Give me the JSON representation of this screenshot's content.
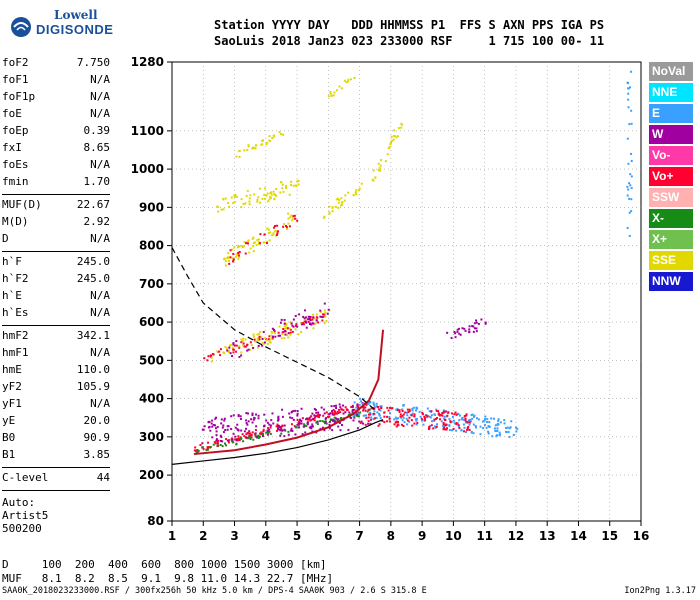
{
  "logo": {
    "line1": "Lowell",
    "line2": "DIGISONDE"
  },
  "header": {
    "line1": "Station YYYY DAY   DDD HHMMSS P1  FFS S AXN PPS IGA PS",
    "line2": "SaoLuis 2018 Jan23 023 233000 RSF     1 715 100 00- 11"
  },
  "params": [
    [
      {
        "k": "foF2",
        "v": "7.750"
      },
      {
        "k": "foF1",
        "v": "N/A"
      },
      {
        "k": "foF1p",
        "v": "N/A"
      },
      {
        "k": "foE",
        "v": "N/A"
      },
      {
        "k": "foEp",
        "v": "0.39"
      },
      {
        "k": "fxI",
        "v": "8.65"
      },
      {
        "k": "foEs",
        "v": "N/A"
      },
      {
        "k": "fmin",
        "v": "1.70"
      }
    ],
    [
      {
        "k": "MUF(D)",
        "v": "22.67"
      },
      {
        "k": "M(D)",
        "v": "2.92"
      },
      {
        "k": "D",
        "v": "N/A"
      }
    ],
    [
      {
        "k": "h`F",
        "v": "245.0"
      },
      {
        "k": "h`F2",
        "v": "245.0"
      },
      {
        "k": "h`E",
        "v": "N/A"
      },
      {
        "k": "h`Es",
        "v": "N/A"
      }
    ],
    [
      {
        "k": "hmF2",
        "v": "342.1"
      },
      {
        "k": "hmF1",
        "v": "N/A"
      },
      {
        "k": "hmE",
        "v": "110.0"
      },
      {
        "k": "yF2",
        "v": "105.9"
      },
      {
        "k": "yF1",
        "v": "N/A"
      },
      {
        "k": "yE",
        "v": "20.0"
      },
      {
        "k": "B0",
        "v": "90.9"
      },
      {
        "k": "B1",
        "v": "3.85"
      }
    ],
    [
      {
        "k": "C-level",
        "v": "44"
      }
    ]
  ],
  "auto": {
    "l1": "Auto:",
    "l2": "Artist5",
    "l3": "500200"
  },
  "dtable": {
    "row1": "D     100  200  400  600  800 1000 1500 3000 [km]",
    "row2": "MUF   8.1  8.2  8.5  9.1  9.8 11.0 14.3 22.7 [MHz]"
  },
  "footer": "SAA0K_2018023233000.RSF / 300fx256h 50 kHz 5.0 km / DPS-4 SAA0K 903 / 2.6 S 315.8 E",
  "footer_right": "Ion2Png 1.3.17",
  "legend": [
    {
      "label": "NoVal",
      "color": "#9a9a9a"
    },
    {
      "label": "NNE",
      "color": "#00e5ff"
    },
    {
      "label": "E",
      "color": "#3aa0ff"
    },
    {
      "label": "W",
      "color": "#a000a0"
    },
    {
      "label": "Vo-",
      "color": "#ff3aa8"
    },
    {
      "label": "Vo+",
      "color": "#ff0030"
    },
    {
      "label": "SSW",
      "color": "#ffb0b0"
    },
    {
      "label": "X-",
      "color": "#168c16"
    },
    {
      "label": "X+",
      "color": "#70c050"
    },
    {
      "label": "SSE",
      "color": "#e0d800"
    },
    {
      "label": "NNW",
      "color": "#1818d0"
    }
  ],
  "chart_data": {
    "type": "scatter",
    "title": "",
    "xlabel": "",
    "ylabel": "",
    "xlim": [
      1,
      16
    ],
    "ylim": [
      80,
      1280
    ],
    "x_ticks": [
      1,
      2,
      3,
      4,
      5,
      6,
      7,
      8,
      9,
      10,
      11,
      12,
      13,
      14,
      15,
      16
    ],
    "y_ticks": [
      80,
      200,
      300,
      400,
      500,
      600,
      700,
      800,
      900,
      1000,
      1100,
      1280
    ],
    "grid": true,
    "legend_placement": "right",
    "traces": [
      {
        "f0": 1.7,
        "h0": 270,
        "f1": 7.3,
        "h1": 390,
        "color": "#ff0030",
        "n": 160,
        "spread": 8
      },
      {
        "f0": 1.7,
        "h0": 265,
        "f1": 7.3,
        "h1": 370,
        "color": "#168c16",
        "n": 90,
        "spread": 6
      },
      {
        "f0": 2.0,
        "h0": 320,
        "f1": 7.2,
        "h1": 360,
        "color": "#a000a0",
        "n": 220,
        "spread": 35
      },
      {
        "f0": 6.8,
        "h0": 380,
        "f1": 12.0,
        "h1": 320,
        "color": "#3aa0ff",
        "n": 220,
        "spread": 25
      },
      {
        "f0": 7.0,
        "h0": 360,
        "f1": 10.5,
        "h1": 340,
        "color": "#ff0030",
        "n": 140,
        "spread": 25
      },
      {
        "f0": 1.8,
        "h0": 500,
        "f1": 6.0,
        "h1": 620,
        "color": "#ff0030",
        "n": 70,
        "spread": 10
      },
      {
        "f0": 2.2,
        "h0": 510,
        "f1": 6.0,
        "h1": 620,
        "color": "#e0d800",
        "n": 80,
        "spread": 20
      },
      {
        "f0": 2.8,
        "h0": 520,
        "f1": 6.0,
        "h1": 640,
        "color": "#a000a0",
        "n": 60,
        "spread": 25
      },
      {
        "f0": 2.6,
        "h0": 760,
        "f1": 5.0,
        "h1": 880,
        "color": "#e0d800",
        "n": 70,
        "spread": 20
      },
      {
        "f0": 2.6,
        "h0": 760,
        "f1": 5.0,
        "h1": 880,
        "color": "#ff0030",
        "n": 30,
        "spread": 20
      },
      {
        "f0": 2.3,
        "h0": 900,
        "f1": 5.0,
        "h1": 960,
        "color": "#e0d800",
        "n": 70,
        "spread": 20
      },
      {
        "f0": 5.8,
        "h0": 880,
        "f1": 7.0,
        "h1": 960,
        "color": "#e0d800",
        "n": 30,
        "spread": 10
      },
      {
        "f0": 3.0,
        "h0": 1040,
        "f1": 4.6,
        "h1": 1100,
        "color": "#e0d800",
        "n": 30,
        "spread": 10
      },
      {
        "f0": 6.0,
        "h0": 1190,
        "f1": 6.8,
        "h1": 1250,
        "color": "#e0d800",
        "n": 15,
        "spread": 8
      },
      {
        "f0": 7.4,
        "h0": 980,
        "f1": 8.3,
        "h1": 1120,
        "color": "#e0d800",
        "n": 30,
        "spread": 12
      },
      {
        "f0": 9.8,
        "h0": 570,
        "f1": 11.0,
        "h1": 600,
        "color": "#a000a0",
        "n": 30,
        "spread": 15
      },
      {
        "f0": 15.6,
        "h0": 820,
        "f1": 15.6,
        "h1": 1260,
        "color": "#3aa0ff",
        "n": 30,
        "spread": 5
      }
    ],
    "lines": [
      {
        "style": "solid",
        "color": "#000",
        "points": [
          [
            1,
            228
          ],
          [
            2,
            237
          ],
          [
            3,
            246
          ],
          [
            4,
            257
          ],
          [
            5,
            272
          ],
          [
            6,
            292
          ],
          [
            7,
            318
          ],
          [
            7.5,
            337
          ],
          [
            7.75,
            345
          ]
        ]
      },
      {
        "style": "solid",
        "color": "#c01020",
        "points": [
          [
            1.7,
            255
          ],
          [
            3,
            265
          ],
          [
            4,
            280
          ],
          [
            5,
            298
          ],
          [
            6,
            325
          ],
          [
            6.8,
            360
          ],
          [
            7.3,
            395
          ],
          [
            7.6,
            450
          ],
          [
            7.75,
            580
          ]
        ]
      },
      {
        "style": "dashed",
        "color": "#000",
        "points": [
          [
            1,
            795
          ],
          [
            1.5,
            720
          ],
          [
            2,
            650
          ],
          [
            3,
            580
          ],
          [
            4,
            535
          ],
          [
            5,
            495
          ],
          [
            6,
            455
          ],
          [
            6.5,
            430
          ],
          [
            7,
            405
          ],
          [
            7.5,
            370
          ]
        ]
      }
    ]
  }
}
